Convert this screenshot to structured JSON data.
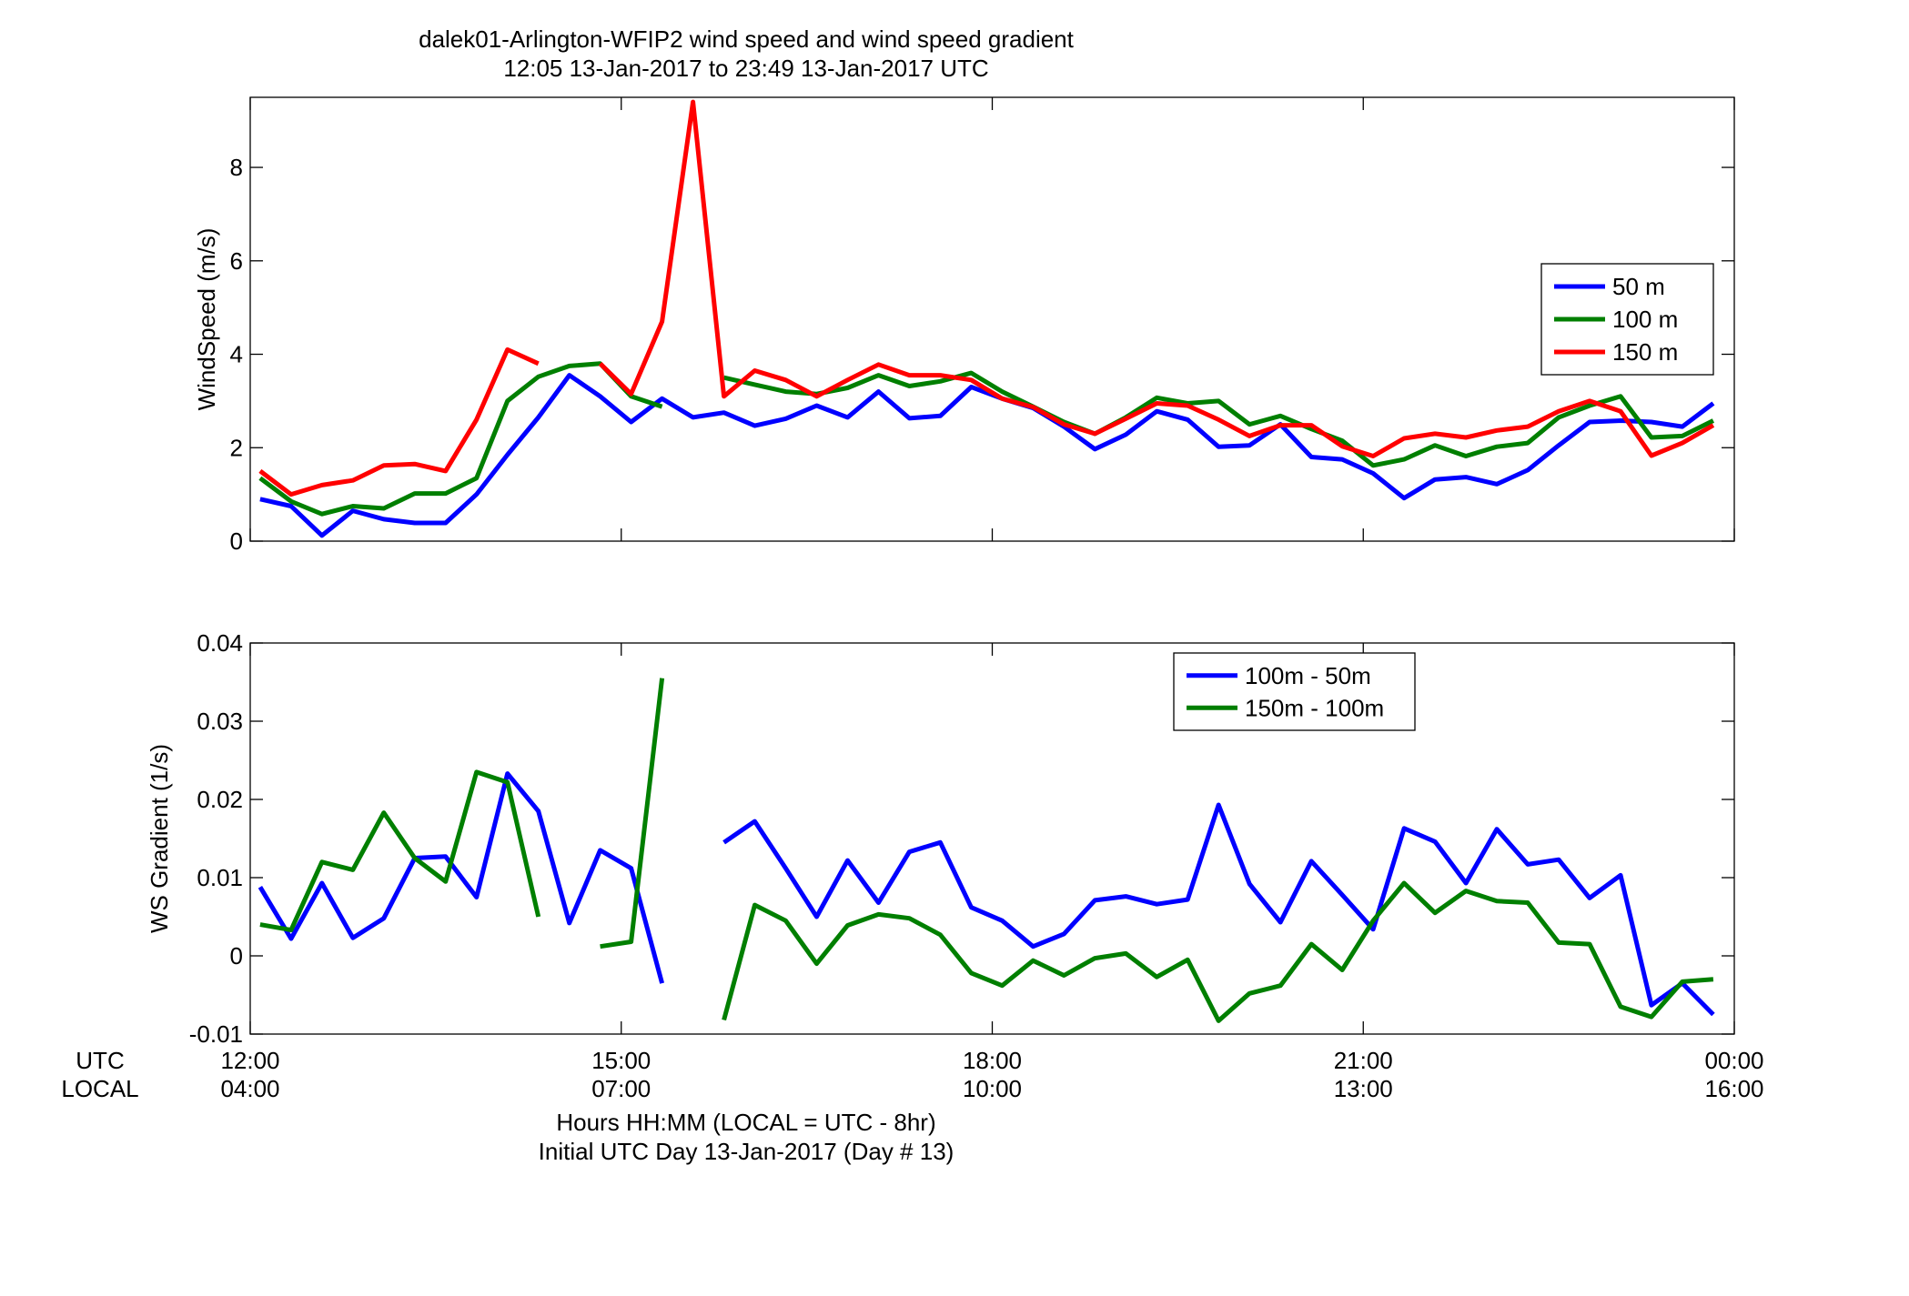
{
  "title": {
    "line1": "dalek01-Arlington-WFIP2  wind speed and wind speed gradient",
    "line2": "12:05 13-Jan-2017 to 23:49 13-Jan-2017  UTC"
  },
  "xlabel": {
    "line1": "Hours HH:MM  (LOCAL = UTC - 8hr)",
    "line2": "Initial UTC Day 13-Jan-2017 (Day # 13)"
  },
  "row_labels": {
    "utc": "UTC",
    "local": "LOCAL"
  },
  "colors": {
    "blue": "#0000ff",
    "green": "#007f00",
    "red": "#ff0000"
  },
  "chart_data": [
    {
      "type": "line",
      "ylabel": "WindSpeed (m/s)",
      "xlim": [
        12.0,
        24.0
      ],
      "ylim": [
        0,
        9.5
      ],
      "yticks": [
        0,
        2,
        4,
        6,
        8
      ],
      "xticks": [
        {
          "value": 12,
          "utc": "12:00",
          "local": "04:00"
        },
        {
          "value": 15,
          "utc": "15:00",
          "local": "07:00"
        },
        {
          "value": 18,
          "utc": "18:00",
          "local": "10:00"
        },
        {
          "value": 21,
          "utc": "21:00",
          "local": "13:00"
        },
        {
          "value": 24,
          "utc": "00:00",
          "local": "16:00"
        }
      ],
      "grid": false,
      "legend_position": "right",
      "series": [
        {
          "name": "50 m",
          "color": "#0000ff",
          "x": [
            12.08,
            12.33,
            12.58,
            12.83,
            13.08,
            13.33,
            13.58,
            13.83,
            14.08,
            14.33,
            14.58,
            14.83,
            15.08,
            15.33,
            15.58,
            15.83,
            16.08,
            16.33,
            16.58,
            16.83,
            17.08,
            17.33,
            17.58,
            17.83,
            18.08,
            18.33,
            18.58,
            18.83,
            19.08,
            19.33,
            19.58,
            19.83,
            20.08,
            20.33,
            20.58,
            20.83,
            21.08,
            21.33,
            21.58,
            21.83,
            22.08,
            22.33,
            22.58,
            22.83,
            23.08,
            23.33,
            23.58,
            23.83
          ],
          "y": [
            0.9,
            0.75,
            0.12,
            0.65,
            0.47,
            0.39,
            0.39,
            1.0,
            1.85,
            2.65,
            3.55,
            3.1,
            2.55,
            3.05,
            2.65,
            2.75,
            2.47,
            2.62,
            2.9,
            2.65,
            3.2,
            2.63,
            2.68,
            3.3,
            3.05,
            2.85,
            2.45,
            1.97,
            2.28,
            2.78,
            2.6,
            2.02,
            2.05,
            2.5,
            1.8,
            1.75,
            1.45,
            0.92,
            1.32,
            1.37,
            1.22,
            1.52,
            2.05,
            2.55,
            2.58,
            2.55,
            2.45,
            2.95
          ]
        },
        {
          "name": "100 m",
          "color": "#007f00",
          "x": [
            12.08,
            12.33,
            12.58,
            12.83,
            13.08,
            13.33,
            13.58,
            13.83,
            14.08,
            14.33,
            14.58,
            14.83,
            15.08,
            15.33,
            null,
            15.83,
            16.08,
            16.33,
            16.58,
            16.83,
            17.08,
            17.33,
            17.58,
            17.83,
            18.08,
            18.33,
            18.58,
            18.83,
            19.08,
            19.33,
            19.58,
            19.83,
            20.08,
            20.33,
            20.58,
            20.83,
            21.08,
            21.33,
            21.58,
            21.83,
            22.08,
            22.33,
            22.58,
            22.83,
            23.08,
            23.33,
            23.58,
            23.83
          ],
          "y": [
            1.35,
            0.85,
            0.58,
            0.75,
            0.7,
            1.02,
            1.02,
            1.35,
            3.0,
            3.52,
            3.75,
            3.8,
            3.1,
            2.88,
            null,
            3.5,
            3.35,
            3.2,
            3.15,
            3.28,
            3.55,
            3.32,
            3.42,
            3.6,
            3.2,
            2.88,
            2.55,
            2.3,
            2.65,
            3.07,
            2.95,
            3.0,
            2.5,
            2.68,
            2.4,
            2.15,
            1.62,
            1.75,
            2.05,
            1.82,
            2.02,
            2.1,
            2.65,
            2.9,
            3.1,
            2.22,
            2.25,
            2.58
          ]
        },
        {
          "name": "150 m",
          "color": "#ff0000",
          "x": [
            12.08,
            12.33,
            12.58,
            12.83,
            13.08,
            13.33,
            13.58,
            13.83,
            14.08,
            14.33,
            null,
            14.83,
            15.08,
            15.33,
            15.58,
            15.83,
            16.08,
            16.33,
            16.58,
            16.83,
            17.08,
            17.33,
            17.58,
            17.83,
            18.08,
            18.33,
            18.58,
            18.83,
            19.08,
            19.33,
            19.58,
            19.83,
            20.08,
            20.33,
            20.58,
            20.83,
            21.08,
            21.33,
            21.58,
            21.83,
            22.08,
            22.33,
            22.58,
            22.83,
            23.08,
            23.33,
            23.58,
            23.83
          ],
          "y": [
            1.5,
            1.0,
            1.2,
            1.3,
            1.62,
            1.65,
            1.5,
            2.6,
            4.1,
            3.8,
            null,
            3.8,
            3.15,
            4.7,
            9.4,
            3.1,
            3.65,
            3.45,
            3.1,
            3.45,
            3.78,
            3.55,
            3.55,
            3.45,
            3.05,
            2.87,
            2.5,
            2.3,
            2.62,
            2.95,
            2.9,
            2.6,
            2.25,
            2.48,
            2.48,
            2.03,
            1.82,
            2.2,
            2.3,
            2.22,
            2.37,
            2.45,
            2.78,
            3.0,
            2.78,
            1.83,
            2.1,
            2.48
          ]
        }
      ]
    },
    {
      "type": "line",
      "ylabel": "WS Gradient (1/s)",
      "xlim": [
        12.0,
        24.0
      ],
      "ylim": [
        -0.01,
        0.04
      ],
      "yticks": [
        -0.01,
        0,
        0.01,
        0.02,
        0.03,
        0.04
      ],
      "ytick_labels": [
        "-0.01",
        "0",
        "0.01",
        "0.02",
        "0.03",
        "0.04"
      ],
      "xticks": [
        {
          "value": 12,
          "utc": "12:00",
          "local": "04:00"
        },
        {
          "value": 15,
          "utc": "15:00",
          "local": "07:00"
        },
        {
          "value": 18,
          "utc": "18:00",
          "local": "10:00"
        },
        {
          "value": 21,
          "utc": "21:00",
          "local": "13:00"
        },
        {
          "value": 24,
          "utc": "00:00",
          "local": "16:00"
        }
      ],
      "grid": false,
      "legend_position": "top-right",
      "series": [
        {
          "name": "100m - 50m",
          "color": "#0000ff",
          "x": [
            12.08,
            12.33,
            12.58,
            12.83,
            13.08,
            13.33,
            13.58,
            13.83,
            14.08,
            14.33,
            14.58,
            14.83,
            15.08,
            15.33,
            null,
            15.83,
            16.08,
            16.33,
            16.58,
            16.83,
            17.08,
            17.33,
            17.58,
            17.83,
            18.08,
            18.33,
            18.58,
            18.83,
            19.08,
            19.33,
            19.58,
            19.83,
            20.08,
            20.33,
            20.58,
            20.83,
            21.08,
            21.33,
            21.58,
            21.83,
            22.08,
            22.33,
            22.58,
            22.83,
            23.08,
            23.33,
            23.58,
            23.83
          ],
          "y": [
            0.0088,
            0.0022,
            0.0093,
            0.0023,
            0.0048,
            0.0125,
            0.0127,
            0.0075,
            0.0233,
            0.0185,
            0.0042,
            0.0135,
            0.0112,
            -0.0035,
            null,
            0.0145,
            0.0172,
            0.0112,
            0.005,
            0.0122,
            0.0068,
            0.0133,
            0.0145,
            0.0062,
            0.0045,
            0.0012,
            0.0028,
            0.0071,
            0.0076,
            0.0066,
            0.0072,
            0.0193,
            0.0092,
            0.0043,
            0.0121,
            0.0078,
            0.0034,
            0.0163,
            0.0146,
            0.0093,
            0.0162,
            0.0117,
            0.0123,
            0.0074,
            0.0103,
            -0.0063,
            -0.0035,
            -0.0075
          ]
        },
        {
          "name": "150m - 100m",
          "color": "#007f00",
          "x": [
            12.08,
            12.33,
            12.58,
            12.83,
            13.08,
            13.33,
            13.58,
            13.83,
            14.08,
            14.33,
            null,
            14.83,
            15.08,
            15.33,
            null,
            15.83,
            16.08,
            16.33,
            16.58,
            16.83,
            17.08,
            17.33,
            17.58,
            17.83,
            18.08,
            18.33,
            18.58,
            18.83,
            19.08,
            19.33,
            19.58,
            19.83,
            20.08,
            20.33,
            20.58,
            20.83,
            21.08,
            21.33,
            21.58,
            21.83,
            22.08,
            22.33,
            22.58,
            22.83,
            23.08,
            23.33,
            23.58,
            23.83
          ],
          "y": [
            0.004,
            0.0033,
            0.012,
            0.011,
            0.0183,
            0.0125,
            0.0095,
            0.0235,
            0.0222,
            0.005,
            null,
            0.0012,
            0.0018,
            0.0355,
            null,
            -0.0082,
            0.0065,
            0.0045,
            -0.001,
            0.0039,
            0.0053,
            0.0048,
            0.0027,
            -0.0022,
            -0.0038,
            -0.0006,
            -0.0025,
            -0.0003,
            0.0003,
            -0.0027,
            -0.0005,
            -0.0083,
            -0.0048,
            -0.0038,
            0.0015,
            -0.0018,
            0.0045,
            0.0093,
            0.0055,
            0.0083,
            0.007,
            0.0068,
            0.0017,
            0.0015,
            -0.0065,
            -0.0078,
            -0.0033,
            -0.003
          ]
        }
      ]
    }
  ]
}
